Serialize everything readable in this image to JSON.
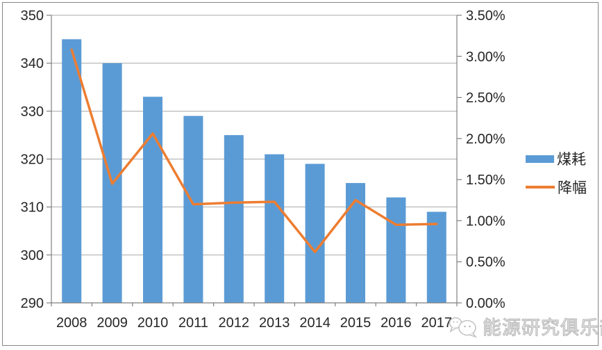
{
  "chart_data": {
    "type": "combo: bar + line (dual axis)",
    "title": "",
    "categories": [
      "2008",
      "2009",
      "2010",
      "2011",
      "2012",
      "2013",
      "2014",
      "2015",
      "2016",
      "2017"
    ],
    "series": [
      {
        "name": "煤耗",
        "type": "bar",
        "axis": "left",
        "color": "#5B9BD5",
        "values": [
          345,
          340,
          333,
          329,
          325,
          321,
          319,
          315,
          312,
          309
        ]
      },
      {
        "name": "降幅",
        "type": "line",
        "axis": "right",
        "color": "#ED7D31",
        "unit": "%",
        "values": [
          3.08,
          1.45,
          2.06,
          1.2,
          1.22,
          1.23,
          0.62,
          1.25,
          0.95,
          0.96
        ]
      }
    ],
    "left_axis": {
      "min": 290,
      "max": 350,
      "tick_step": 10,
      "tick_values": [
        350,
        340,
        330,
        320,
        310,
        300,
        290
      ],
      "tick_labels": [
        "350",
        "340",
        "330",
        "320",
        "310",
        "300",
        "290"
      ]
    },
    "right_axis": {
      "min": 0,
      "max": 3.5,
      "tick_step": 0.5,
      "tick_values": [
        3.5,
        3.0,
        2.5,
        2.0,
        1.5,
        1.0,
        0.5,
        0
      ],
      "tick_labels": [
        "3.50%",
        "3.00%",
        "2.50%",
        "2.00%",
        "1.50%",
        "1.00%",
        "0.50%",
        "0.00%"
      ]
    },
    "grid": true,
    "legend_position": "right"
  },
  "colors": {
    "bar": "#5B9BD5",
    "line": "#ED7D31",
    "gridline": "#a9a9a9",
    "axis": "#7f7f7f",
    "text": "#262626",
    "watermark": "#bcbcbc",
    "background": "#ffffff"
  },
  "watermark": {
    "text": "能源研究俱乐部"
  }
}
